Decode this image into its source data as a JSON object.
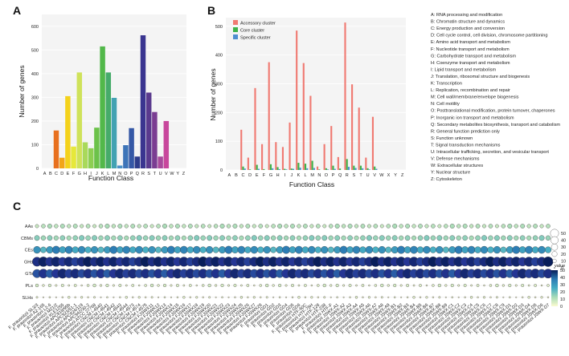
{
  "panel_labels": {
    "a": "A",
    "b": "B",
    "c": "C"
  },
  "chart_data": [
    {
      "type": "bar",
      "panel": "A",
      "xlabel": "Function Class",
      "ylabel": "Number of genes",
      "ylim": [
        0,
        650
      ],
      "yticks": [
        0,
        100,
        200,
        300,
        400,
        500,
        600
      ],
      "categories": [
        "A",
        "B",
        "C",
        "D",
        "E",
        "F",
        "G",
        "H",
        "I",
        "J",
        "K",
        "L",
        "M",
        "N",
        "O",
        "P",
        "Q",
        "R",
        "S",
        "T",
        "U",
        "V",
        "W",
        "Y",
        "Z"
      ],
      "values": [
        0,
        0,
        160,
        45,
        305,
        92,
        405,
        110,
        85,
        172,
        515,
        405,
        298,
        12,
        98,
        170,
        50,
        562,
        320,
        238,
        50,
        200,
        0,
        0,
        0
      ],
      "colors": [
        "#f5a06a",
        "#e8894a",
        "#e8701e",
        "#f2a518",
        "#f4d21c",
        "#e6e83a",
        "#cfe25a",
        "#a9d95a",
        "#8dcf52",
        "#6cc24a",
        "#52b84a",
        "#46ab6a",
        "#42a2b2",
        "#4a90c8",
        "#3d74b8",
        "#3558a6",
        "#2e3d8c",
        "#3a3590",
        "#5a3a8e",
        "#7a3d92",
        "#a84a9c",
        "#c8479c",
        "#c8479c",
        "#c8479c",
        "#c8479c"
      ]
    },
    {
      "type": "bar",
      "panel": "B",
      "xlabel": "Function Class",
      "ylabel": "Number of genes",
      "ylim": [
        0,
        530
      ],
      "yticks": [
        0,
        100,
        200,
        300,
        400,
        500
      ],
      "categories": [
        "A",
        "B",
        "C",
        "D",
        "E",
        "F",
        "G",
        "H",
        "I",
        "J",
        "K",
        "L",
        "M",
        "N",
        "O",
        "P",
        "Q",
        "R",
        "S",
        "T",
        "U",
        "V",
        "W",
        "X",
        "Y",
        "Z"
      ],
      "series": [
        {
          "name": "Accessory cluster",
          "color": "#f07a72",
          "values": [
            0,
            0,
            140,
            43,
            285,
            90,
            375,
            97,
            80,
            165,
            485,
            372,
            258,
            12,
            90,
            153,
            45,
            513,
            298,
            217,
            43,
            185,
            0,
            0,
            0,
            0
          ]
        },
        {
          "name": "Core cluster",
          "color": "#3db34a",
          "values": [
            0,
            0,
            12,
            2,
            18,
            3,
            20,
            10,
            4,
            5,
            25,
            22,
            32,
            2,
            6,
            15,
            5,
            38,
            15,
            15,
            6,
            12,
            0,
            0,
            0,
            0
          ]
        },
        {
          "name": "Specific cluster",
          "color": "#4f8fd0",
          "values": [
            0,
            0,
            5,
            0,
            4,
            0,
            6,
            3,
            2,
            4,
            8,
            6,
            7,
            0,
            2,
            4,
            0,
            11,
            7,
            6,
            2,
            4,
            0,
            0,
            0,
            0
          ]
        }
      ]
    },
    {
      "type": "scatter",
      "panel": "C",
      "rows": [
        "AAs",
        "CBMs",
        "CEs",
        "GHs",
        "GTs",
        "PLs",
        "SLHs"
      ],
      "columns": [
        "F. prausnitzii SL3/3",
        "F. prausnitzii A2-165",
        "F. prausnitzii L2-6",
        "F. prausnitzii M21/2",
        "F. prausnitzii KLE1255",
        "F. prausnitzii APC918/95b",
        "F. prausnitzii APC923/51-1",
        "F. prausnitzii APC924/119",
        "F. prausnitzii APC942/30-2",
        "F. prausnitzii ATCC 27768",
        "F. prausnitzii CNCM I-4540",
        "F. prausnitzii CNCM I-4541",
        "F. prausnitzii CNCM I-4542",
        "F. prausnitzii CNCM I-4543",
        "F. prausnitzii CNCM I-4544",
        "F. prausnitzii CNCM I-4573",
        "F. prausnitzii CNCM I-4574",
        "F. prausnitzii CNCM I-4575",
        "F. prausnitzii FJSWX11",
        "F. prausnitzii FJSWX12",
        "F. prausnitzii FJSWX13",
        "F. prausnitzii FJSWX14",
        "F. prausnitzii FJSWX15",
        "F. prausnitzii FJSWX16",
        "F. prausnitzii FJSWX17",
        "F. prausnitzii FJSWX18",
        "F. prausnitzii FJSWX19",
        "F. prausnitzii FJSWX20",
        "F. prausnitzii FJSWX21",
        "F. prausnitzii FJSWX22",
        "F. prausnitzii FJSWX23",
        "F. prausnitzii FJSWX24",
        "F. prausnitzii FJSWX25",
        "F. prausnitzii FJSWX26",
        "F. prausnitzii FJSWX27",
        "F. prausnitzii FJSWX28",
        "F. prausnitzii GD1",
        "F. prausnitzii GD2",
        "F. prausnitzii GD3",
        "F. prausnitzii GD4",
        "F. prausnitzii GD5",
        "F. prausnitzii GD6",
        "F. prausnitzii HTF-60C",
        "F. prausnitzii HTF-75H",
        "F. prausnitzii HTF-128",
        "F. prausnitzii HTF-238",
        "F. prausnitzii HTF-F",
        "F. prausnitzii JSWX-A1",
        "F. prausnitzii JSWX-A2",
        "F. prausnitzii JSWX-A3",
        "F. prausnitzii JSWX-A4",
        "F. prausnitzii JSWX-A5",
        "F. prausnitzii JSWX-A6",
        "F. prausnitzii JSWX-A7",
        "F. prausnitzii JSWX-A8",
        "F. prausnitzii JSWX-A9",
        "F. prausnitzii JSWX-B1",
        "F. prausnitzii JSWX-B2",
        "F. prausnitzii JSWX-B3",
        "F. prausnitzii JSWX-B4",
        "F. prausnitzii JSWX-B5",
        "F. prausnitzii JSWX-B6",
        "F. prausnitzii JSWX-B7",
        "F. prausnitzii JSWX-B8",
        "F. prausnitzii JSWX-B9",
        "F. prausnitzii JSWX-C1",
        "F. prausnitzii JSWX-C2",
        "F. prausnitzii JSWX-C3",
        "F. prausnitzii JSWX-C4",
        "F. prausnitzii JSWX-C5",
        "F. prausnitzii JSWX-C6",
        "F. prausnitzii JSWX-C7",
        "F. prausnitzii JSWX-C8",
        "F. prausnitzii JSWX-C9",
        "F. prausnitzii JSWX-D1",
        "F. prausnitzii JSWX-D2",
        "F. prausnitzii JSWX-D3",
        "F. prausnitzii JSWX-D4",
        "F. prausnitzii JSWX-D5",
        "F. prausnitzii JSWX-D6",
        "F. prausnitzii JSWX-D7"
      ],
      "row_base_values": {
        "AAs": 8,
        "CBMs": 12,
        "CEs": 24,
        "GHs": 44,
        "GTs": 40,
        "PLs": 3,
        "SLHs": 1
      },
      "size_legend_title": "",
      "size_legend": [
        50,
        40,
        30,
        20,
        10,
        0
      ],
      "color_legend_title": "value",
      "color_legend": [
        50,
        40,
        30,
        20,
        10,
        0
      ],
      "color_scale": [
        "#fbfbd0",
        "#a9dcb8",
        "#46aec4",
        "#2c7bb4",
        "#253594",
        "#081d58"
      ]
    }
  ],
  "cog_legend": [
    "A: RNA processing and modification",
    "B: Chromatin structure and dynamics",
    "C: Energy production and conversion",
    "D: Cell cycle control, cell division, chromosome partitioning",
    "E: Amino acid transport and metabolism",
    "F: Nucleotide transport and metabolism",
    "G: Carbohydrate transport and metabolism",
    "H: Coenzyme transport and metabolism",
    "I: Lipid transport and metabolism",
    "J: Translation, ribosomal structure and biogenesis",
    "K: Transcription",
    "L: Replication, recombination and repair",
    "M: Cell wall/membrane/envelope biogenesis",
    "N: Cell motility",
    "O: Posttranslational modification, protein turnover, chaperones",
    "P: Inorganic ion transport and metabolism",
    "Q: Secondary metabolites biosynthesis, transport and catabolism",
    "R: General function prediction only",
    "S: Function unknown",
    "T: Signal transduction mechanisms",
    "U: Intracellular trafficking, secretion, and vesicular transport",
    "V: Defense mechanisms",
    "W: Extracellular structures",
    "Y: Nuclear structure",
    "Z: Cytoskeleton"
  ]
}
